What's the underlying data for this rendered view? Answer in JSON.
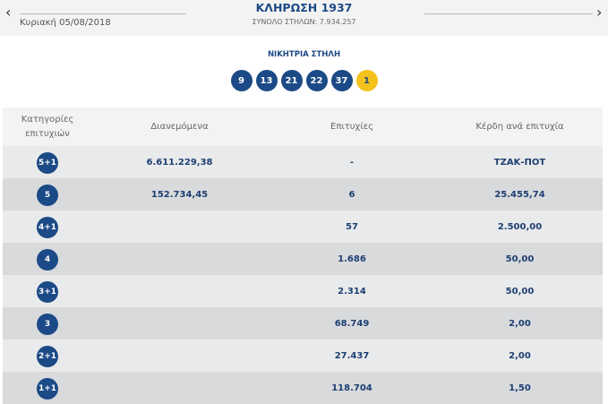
{
  "header": {
    "date": "Κυριακή 05/08/2018",
    "title": "ΚΛΗΡΩΣΗ 1937",
    "total_columns": "ΣΥΝΟΛΟ ΣΤΗΛΩΝ: 7.934.257",
    "prev": "‹",
    "next": "›"
  },
  "winning": {
    "label": "ΝΙΚΗΤΡΙΑ ΣΤΗΛΗ",
    "numbers": [
      "9",
      "13",
      "21",
      "22",
      "37"
    ],
    "joker": "1"
  },
  "table": {
    "headers": [
      "Κατηγορίες επιτυχιών",
      "Διανεμόμενα",
      "Επιτυχίες",
      "Κέρδη ανά επιτυχία"
    ],
    "rows": [
      {
        "cat": "5+1",
        "dist": "6.611.229,38",
        "wins": "-",
        "prize": "ΤΖΑΚ-ΠΟΤ"
      },
      {
        "cat": "5",
        "dist": "152.734,45",
        "wins": "6",
        "prize": "25.455,74"
      },
      {
        "cat": "4+1",
        "dist": "",
        "wins": "57",
        "prize": "2.500,00"
      },
      {
        "cat": "4",
        "dist": "",
        "wins": "1.686",
        "prize": "50,00"
      },
      {
        "cat": "3+1",
        "dist": "",
        "wins": "2.314",
        "prize": "50,00"
      },
      {
        "cat": "3",
        "dist": "",
        "wins": "68.749",
        "prize": "2,00"
      },
      {
        "cat": "2+1",
        "dist": "",
        "wins": "27.437",
        "prize": "2,00"
      },
      {
        "cat": "1+1",
        "dist": "",
        "wins": "118.704",
        "prize": "1,50"
      }
    ]
  },
  "colors": {
    "blue": "#1b4a86",
    "joker": "#f4c21a"
  }
}
